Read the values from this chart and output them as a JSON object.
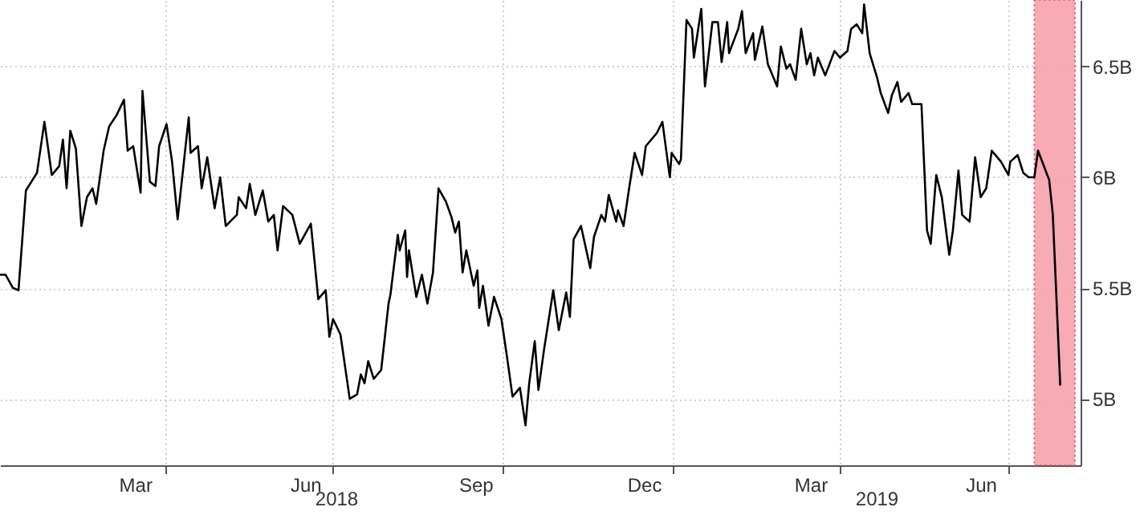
{
  "chart_data": {
    "type": "line",
    "x": [
      "2018-01-02",
      "2018-01-05",
      "2018-01-09",
      "2018-01-12",
      "2018-01-16",
      "2018-01-22",
      "2018-01-26",
      "2018-01-30",
      "2018-02-03",
      "2018-02-05",
      "2018-02-07",
      "2018-02-09",
      "2018-02-12",
      "2018-02-15",
      "2018-02-18",
      "2018-02-21",
      "2018-02-23",
      "2018-02-27",
      "2018-03-02",
      "2018-03-06",
      "2018-03-10",
      "2018-03-12",
      "2018-03-15",
      "2018-03-19",
      "2018-03-20",
      "2018-03-24",
      "2018-03-27",
      "2018-03-29",
      "2018-04-02",
      "2018-04-05",
      "2018-04-08",
      "2018-04-14",
      "2018-04-15",
      "2018-04-19",
      "2018-04-21",
      "2018-04-24",
      "2018-04-28",
      "2018-05-01",
      "2018-05-04",
      "2018-05-10",
      "2018-05-11",
      "2018-05-15",
      "2018-05-17",
      "2018-05-20",
      "2018-05-24",
      "2018-05-27",
      "2018-05-30",
      "2018-06-01",
      "2018-06-04",
      "2018-06-09",
      "2018-06-13",
      "2018-06-19",
      "2018-06-23",
      "2018-06-27",
      "2018-06-29",
      "2018-07-01",
      "2018-07-05",
      "2018-07-10",
      "2018-07-14",
      "2018-07-16",
      "2018-07-18",
      "2018-07-20",
      "2018-07-23",
      "2018-07-27",
      "2018-07-31",
      "2018-08-01",
      "2018-08-05",
      "2018-08-06",
      "2018-08-09",
      "2018-08-10",
      "2018-08-11",
      "2018-08-15",
      "2018-08-18",
      "2018-08-21",
      "2018-08-24",
      "2018-08-27",
      "2018-08-31",
      "2018-09-03",
      "2018-09-05",
      "2018-09-07",
      "2018-09-09",
      "2018-09-11",
      "2018-09-15",
      "2018-09-17",
      "2018-09-18",
      "2018-09-20",
      "2018-09-23",
      "2018-09-26",
      "2018-09-30",
      "2018-10-03",
      "2018-10-06",
      "2018-10-10",
      "2018-10-13",
      "2018-10-15",
      "2018-10-18",
      "2018-10-20",
      "2018-10-23",
      "2018-10-28",
      "2018-10-31",
      "2018-11-04",
      "2018-11-06",
      "2018-11-08",
      "2018-11-12",
      "2018-11-17",
      "2018-11-19",
      "2018-11-23",
      "2018-11-25",
      "2018-11-27",
      "2018-12-01",
      "2018-12-02",
      "2018-12-05",
      "2018-12-08",
      "2018-12-11",
      "2018-12-15",
      "2018-12-17",
      "2018-12-23",
      "2018-12-26",
      "2018-12-30",
      "2018-12-31",
      "2019-01-04",
      "2019-01-05",
      "2019-01-08",
      "2019-01-11",
      "2019-01-12",
      "2019-01-16",
      "2019-01-18",
      "2019-01-22",
      "2019-01-25",
      "2019-01-27",
      "2019-01-30",
      "2019-01-31",
      "2019-02-05",
      "2019-02-07",
      "2019-02-09",
      "2019-02-13",
      "2019-02-14",
      "2019-02-18",
      "2019-02-21",
      "2019-02-26",
      "2019-02-28",
      "2019-03-03",
      "2019-03-05",
      "2019-03-08",
      "2019-03-11",
      "2019-03-14",
      "2019-03-16",
      "2019-03-18",
      "2019-03-20",
      "2019-03-24",
      "2019-03-29",
      "2019-04-01",
      "2019-04-05",
      "2019-04-07",
      "2019-04-10",
      "2019-04-13",
      "2019-04-14",
      "2019-04-17",
      "2019-04-21",
      "2019-04-23",
      "2019-04-27",
      "2019-04-29",
      "2019-05-02",
      "2019-05-04",
      "2019-05-08",
      "2019-05-10",
      "2019-05-15",
      "2019-05-18",
      "2019-05-20",
      "2019-05-23",
      "2019-05-26",
      "2019-05-30",
      "2019-06-01",
      "2019-06-04",
      "2019-06-06",
      "2019-06-10",
      "2019-06-13",
      "2019-06-16",
      "2019-06-19",
      "2019-06-22",
      "2019-06-27",
      "2019-07-01",
      "2019-07-02",
      "2019-07-06",
      "2019-07-09",
      "2019-07-12",
      "2019-07-15",
      "2019-07-17",
      "2019-07-22",
      "2019-07-23",
      "2019-07-25",
      "2019-07-29"
    ],
    "series": [
      {
        "color": "#000000",
        "values": [
          5.56,
          5.56,
          5.5,
          5.49,
          5.94,
          6.02,
          6.25,
          6.01,
          6.05,
          6.17,
          5.95,
          6.21,
          6.13,
          5.78,
          5.91,
          5.95,
          5.88,
          6.12,
          6.23,
          6.28,
          6.35,
          6.12,
          6.14,
          5.93,
          6.39,
          5.98,
          5.96,
          6.14,
          6.24,
          6.07,
          5.81,
          6.27,
          6.11,
          6.14,
          5.95,
          6.09,
          5.86,
          6.0,
          5.78,
          5.83,
          5.91,
          5.86,
          5.97,
          5.83,
          5.94,
          5.8,
          5.83,
          5.67,
          5.87,
          5.83,
          5.7,
          5.79,
          5.45,
          5.49,
          5.28,
          5.36,
          5.29,
          5.0,
          5.02,
          5.11,
          5.07,
          5.17,
          5.09,
          5.13,
          5.43,
          5.47,
          5.74,
          5.67,
          5.76,
          5.55,
          5.67,
          5.46,
          5.56,
          5.43,
          5.57,
          5.95,
          5.89,
          5.82,
          5.75,
          5.8,
          5.57,
          5.67,
          5.51,
          5.58,
          5.41,
          5.51,
          5.33,
          5.46,
          5.36,
          5.19,
          5.01,
          5.05,
          4.88,
          5.07,
          5.26,
          5.04,
          5.22,
          5.49,
          5.31,
          5.48,
          5.37,
          5.72,
          5.78,
          5.59,
          5.73,
          5.83,
          5.8,
          5.92,
          5.8,
          5.85,
          5.78,
          5.95,
          6.11,
          6.01,
          6.14,
          6.2,
          6.25,
          6.0,
          6.11,
          6.06,
          6.08,
          6.71,
          6.67,
          6.54,
          6.76,
          6.41,
          6.7,
          6.7,
          6.52,
          6.7,
          6.56,
          6.67,
          6.75,
          6.56,
          6.65,
          6.53,
          6.68,
          6.51,
          6.41,
          6.59,
          6.49,
          6.51,
          6.44,
          6.67,
          6.51,
          6.56,
          6.46,
          6.54,
          6.46,
          6.57,
          6.54,
          6.57,
          6.67,
          6.69,
          6.65,
          6.78,
          6.56,
          6.45,
          6.38,
          6.29,
          6.37,
          6.43,
          6.34,
          6.38,
          6.33,
          6.33,
          5.76,
          5.7,
          6.01,
          5.91,
          5.65,
          5.76,
          6.03,
          5.83,
          5.8,
          6.09,
          5.91,
          5.95,
          6.12,
          6.07,
          6.01,
          6.07,
          6.1,
          6.02,
          6.0,
          6.0,
          6.12,
          6.01,
          5.99,
          5.83,
          5.06
        ]
      }
    ],
    "xlim": [
      "2018-01-02",
      "2019-08-09"
    ],
    "xticks": [
      {
        "value": "2018-04-01",
        "label": null
      },
      {
        "value": "2018-07-01",
        "label": null
      },
      {
        "value": "2018-10-01",
        "label": null
      },
      {
        "value": "2019-01-01",
        "label": null
      },
      {
        "value": "2019-04-01",
        "label": null
      },
      {
        "value": "2019-07-01",
        "label": null
      },
      {
        "value": "2018-03-16",
        "label": "Mar"
      },
      {
        "value": "2018-06-16",
        "label": "Jun"
      },
      {
        "value": "2018-09-16",
        "label": "Sep"
      },
      {
        "value": "2018-12-16",
        "label": "Dec"
      },
      {
        "value": "2019-03-16",
        "label": "Mar"
      },
      {
        "value": "2019-06-16",
        "label": "Jun"
      }
    ],
    "annotations": [
      "2018",
      "2019"
    ],
    "ylim": [
      4.7,
      6.8
    ],
    "yticks": [
      {
        "value": 5,
        "label": "5B"
      },
      {
        "value": 5.5,
        "label": "5.5B"
      },
      {
        "value": 6,
        "label": "6B"
      },
      {
        "value": 6.5,
        "label": "6.5B"
      }
    ],
    "grid": true,
    "line_style": "solid",
    "bands": [
      {
        "axis": "x",
        "from": "2019-07-15",
        "to": "2019-08-06",
        "color": "#f7a1ad"
      }
    ]
  }
}
